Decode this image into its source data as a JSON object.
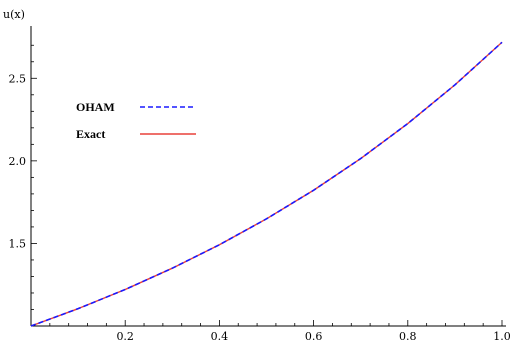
{
  "chart_data": {
    "type": "line",
    "title": "",
    "xlabel": "",
    "ylabel": "u(x)",
    "xlim": [
      0,
      1.0
    ],
    "ylim": [
      1.0,
      2.75
    ],
    "grid": false,
    "x_ticks": [
      {
        "value": 0.2,
        "label": "0.2"
      },
      {
        "value": 0.4,
        "label": "0.4"
      },
      {
        "value": 0.6,
        "label": "0.6"
      },
      {
        "value": 0.8,
        "label": "0.8"
      },
      {
        "value": 1.0,
        "label": "1.0"
      }
    ],
    "y_ticks": [
      {
        "value": 1.5,
        "label": "1.5"
      },
      {
        "value": 2.0,
        "label": "2.0"
      },
      {
        "value": 2.5,
        "label": "2.5"
      }
    ],
    "legend_position": "upper-left",
    "series": [
      {
        "name": "OHAM",
        "color": "#1a1aff",
        "style": "dashed",
        "x": [
          0.0,
          0.1,
          0.2,
          0.3,
          0.4,
          0.5,
          0.6,
          0.7,
          0.8,
          0.9,
          1.0
        ],
        "y": [
          1.0,
          1.105,
          1.221,
          1.35,
          1.492,
          1.649,
          1.822,
          2.014,
          2.226,
          2.46,
          2.718
        ]
      },
      {
        "name": "Exact",
        "color": "#e8413a",
        "style": "solid",
        "x": [
          0.0,
          0.1,
          0.2,
          0.3,
          0.4,
          0.5,
          0.6,
          0.7,
          0.8,
          0.9,
          1.0
        ],
        "y": [
          1.0,
          1.105,
          1.221,
          1.35,
          1.492,
          1.649,
          1.822,
          2.014,
          2.226,
          2.46,
          2.718
        ]
      }
    ]
  }
}
